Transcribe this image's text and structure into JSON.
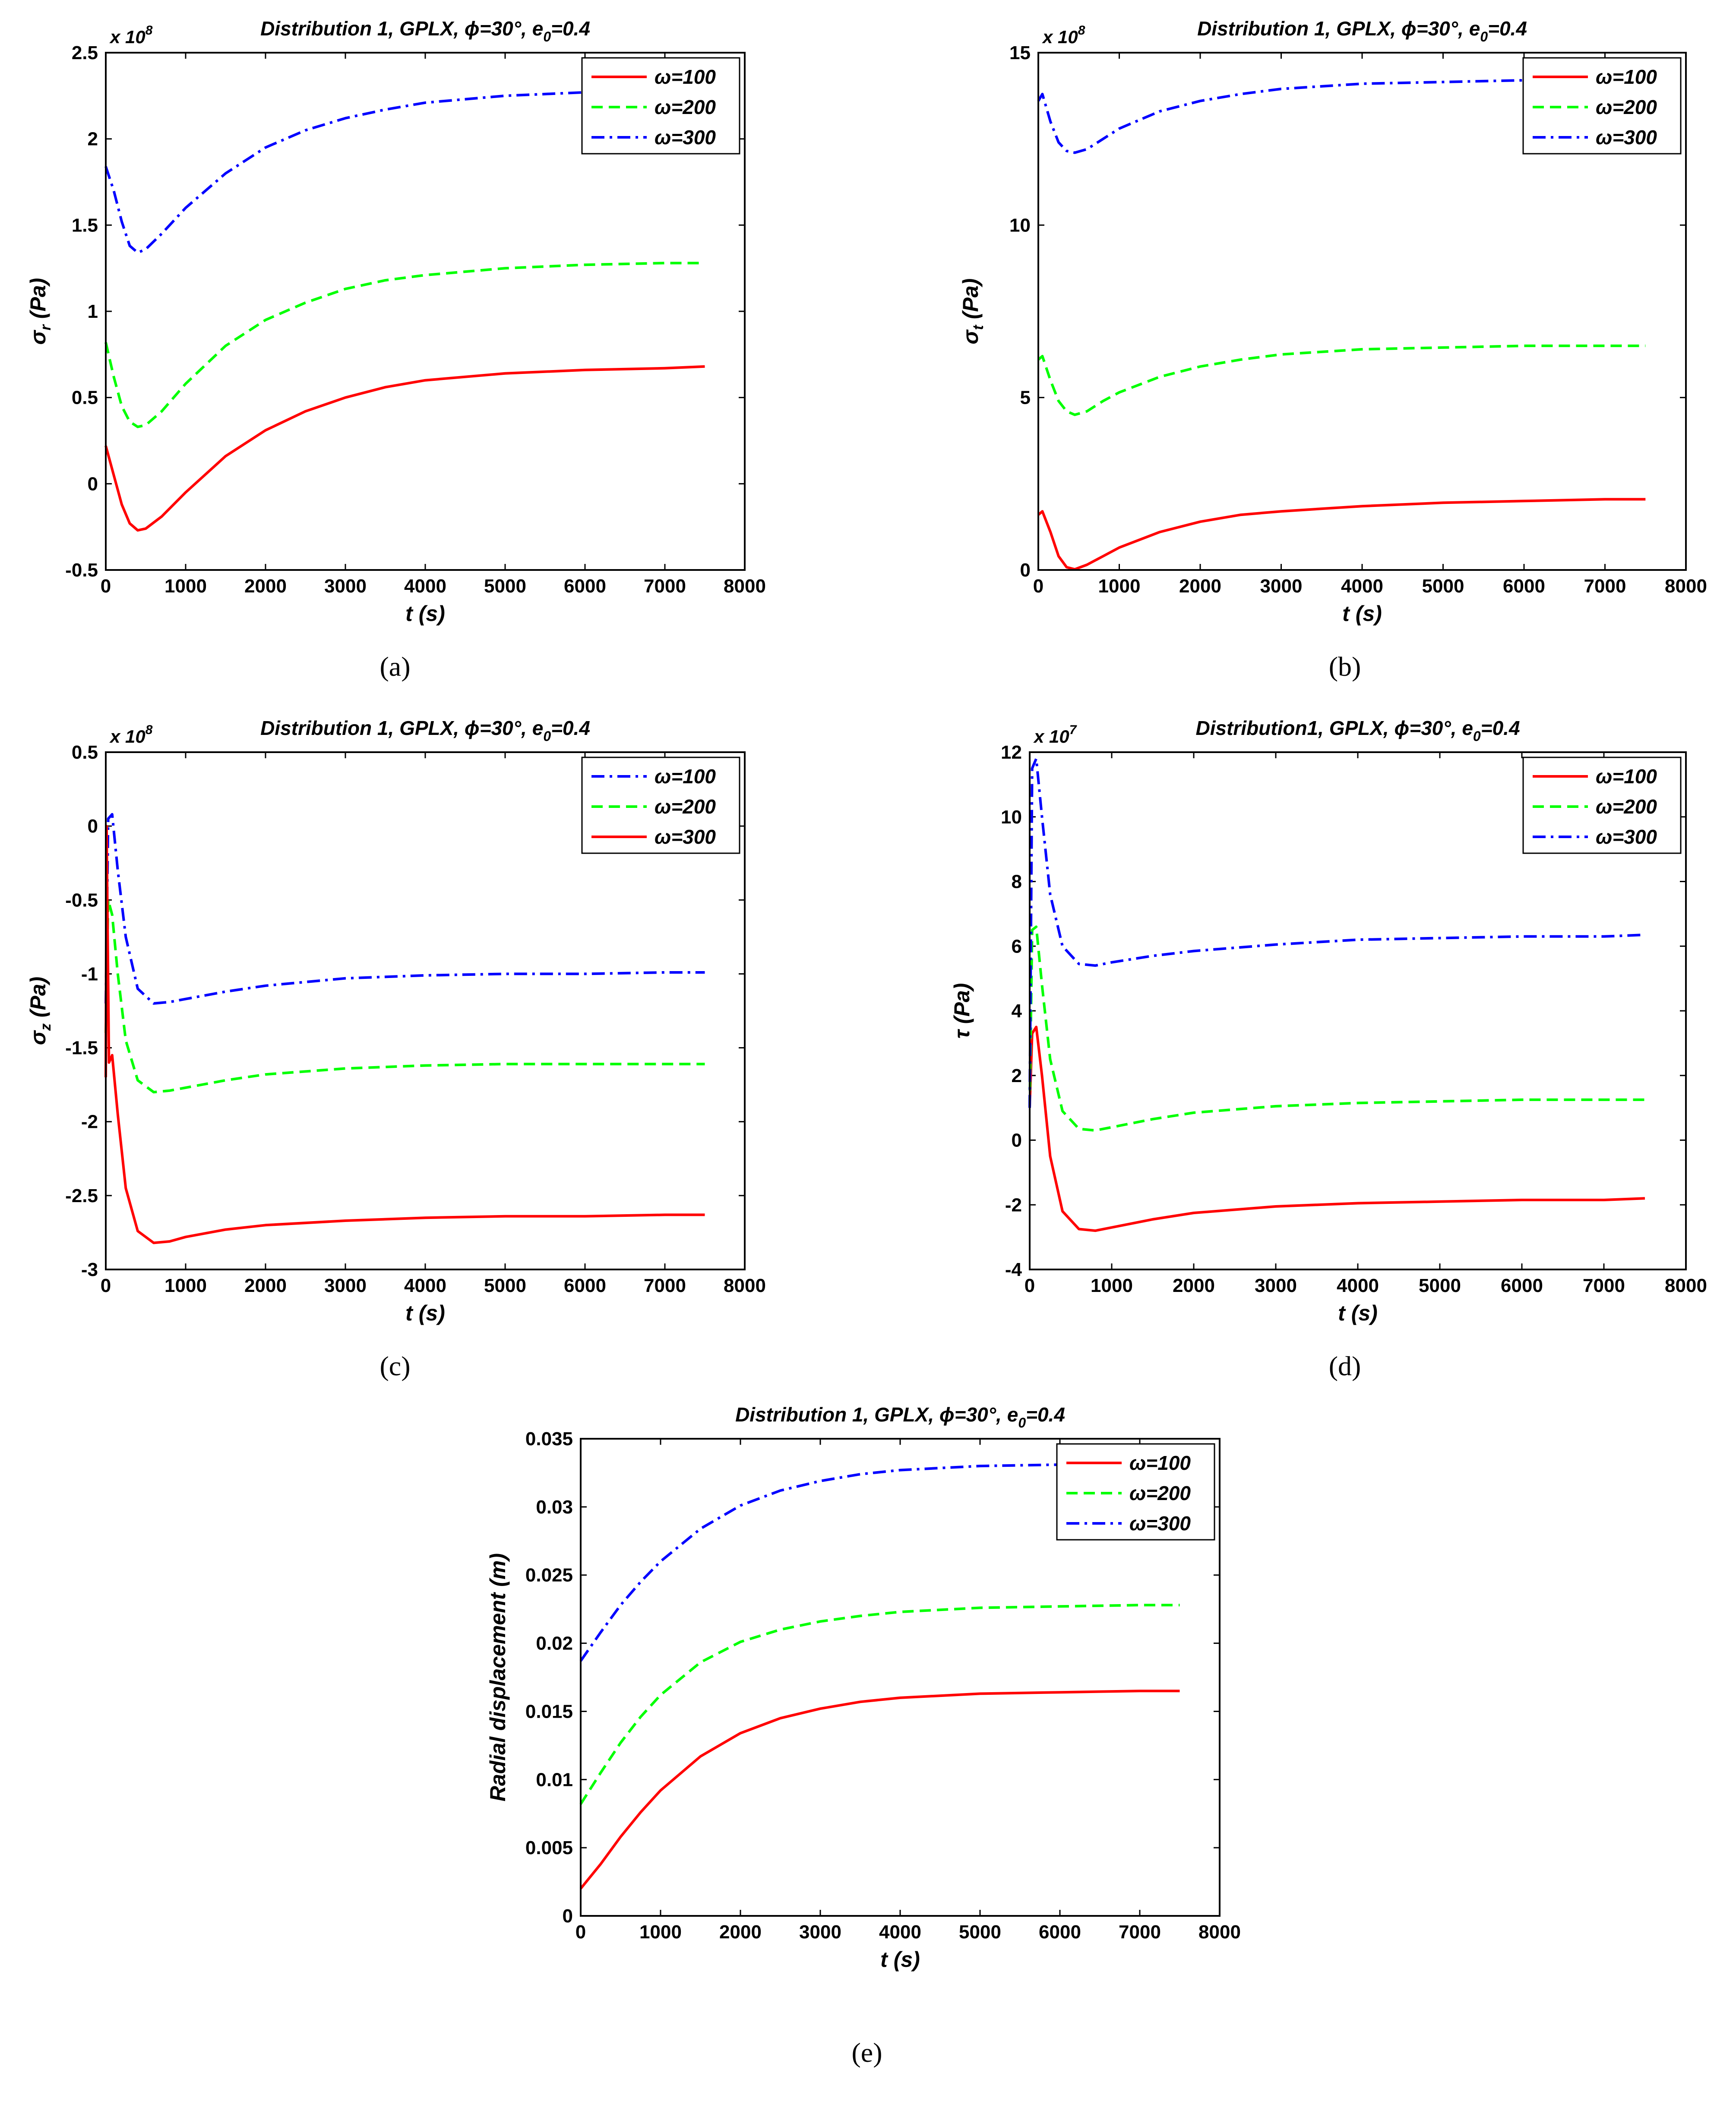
{
  "figure": {
    "captions": [
      "(a)",
      "(b)",
      "(c)",
      "(d)",
      "(e)"
    ]
  },
  "chart_data": [
    {
      "id": "a",
      "type": "line",
      "title": "Distribution 1, GPLX, ϕ=30°, e0=0.4",
      "title_parts": {
        "prefix": "Distribution 1, GPLX, ",
        "phi": "ϕ",
        "mid": "=30°, e",
        "sub": "0",
        "suffix": "=0.4"
      },
      "xlabel": "t (s)",
      "ylabel": "σr (Pa)",
      "ylabel_parts": {
        "main": "σ",
        "sub": "r",
        "rest": " (Pa)"
      },
      "multiplier": {
        "base": "x 10",
        "exp": "8"
      },
      "xlim": [
        0,
        8000
      ],
      "ylim": [
        -0.5,
        2.5
      ],
      "xticks": [
        "0",
        "1000",
        "2000",
        "3000",
        "4000",
        "5000",
        "6000",
        "7000",
        "8000"
      ],
      "yticks": [
        "-0.5",
        "0",
        "0.5",
        "1",
        "1.5",
        "2",
        "2.5"
      ],
      "legend_position": "top-right",
      "series": [
        {
          "name": "ω=100",
          "color": "#ff0000",
          "dash": "solid",
          "x": [
            0,
            100,
            200,
            300,
            400,
            500,
            700,
            1000,
            1500,
            2000,
            2500,
            3000,
            3500,
            4000,
            5000,
            6000,
            7000,
            7500
          ],
          "y": [
            0.22,
            0.05,
            -0.12,
            -0.23,
            -0.27,
            -0.26,
            -0.19,
            -0.05,
            0.16,
            0.31,
            0.42,
            0.5,
            0.56,
            0.6,
            0.64,
            0.66,
            0.67,
            0.68
          ]
        },
        {
          "name": "ω=200",
          "color": "#00ff00",
          "dash": "dashed",
          "x": [
            0,
            100,
            200,
            300,
            400,
            500,
            700,
            1000,
            1500,
            2000,
            2500,
            3000,
            3500,
            4000,
            5000,
            6000,
            7000,
            7500
          ],
          "y": [
            0.82,
            0.62,
            0.45,
            0.36,
            0.33,
            0.34,
            0.42,
            0.58,
            0.8,
            0.95,
            1.05,
            1.13,
            1.18,
            1.21,
            1.25,
            1.27,
            1.28,
            1.28
          ]
        },
        {
          "name": "ω=300",
          "color": "#0000ff",
          "dash": "dashdot",
          "x": [
            0,
            100,
            200,
            300,
            400,
            500,
            700,
            1000,
            1500,
            2000,
            2500,
            3000,
            3500,
            4000,
            5000,
            6000,
            7000,
            7500
          ],
          "y": [
            1.84,
            1.7,
            1.52,
            1.38,
            1.34,
            1.36,
            1.45,
            1.6,
            1.8,
            1.95,
            2.05,
            2.12,
            2.17,
            2.21,
            2.25,
            2.27,
            2.28,
            2.28
          ]
        }
      ]
    },
    {
      "id": "b",
      "type": "line",
      "title": "Distribution 1, GPLX, ϕ=30°, e0=0.4",
      "title_parts": {
        "prefix": "Distribution 1, GPLX, ",
        "phi": "ϕ",
        "mid": "=30°, e",
        "sub": "0",
        "suffix": "=0.4"
      },
      "xlabel": "t (s)",
      "ylabel": "σt (Pa)",
      "ylabel_parts": {
        "main": "σ",
        "sub": "t",
        "rest": " (Pa)"
      },
      "multiplier": {
        "base": "x 10",
        "exp": "8"
      },
      "xlim": [
        0,
        8000
      ],
      "ylim": [
        0,
        15
      ],
      "xticks": [
        "0",
        "1000",
        "2000",
        "3000",
        "4000",
        "5000",
        "6000",
        "7000",
        "8000"
      ],
      "yticks": [
        "0",
        "5",
        "10",
        "15"
      ],
      "legend_position": "top-right",
      "series": [
        {
          "name": "ω=100",
          "color": "#ff0000",
          "dash": "solid",
          "x": [
            0,
            50,
            150,
            250,
            350,
            450,
            600,
            800,
            1000,
            1500,
            2000,
            2500,
            3000,
            4000,
            5000,
            6000,
            7000,
            7500
          ],
          "y": [
            1.6,
            1.7,
            1.1,
            0.4,
            0.08,
            0.02,
            0.15,
            0.4,
            0.65,
            1.1,
            1.4,
            1.6,
            1.7,
            1.85,
            1.95,
            2.0,
            2.05,
            2.05
          ]
        },
        {
          "name": "ω=200",
          "color": "#00ff00",
          "dash": "dashed",
          "x": [
            0,
            50,
            150,
            250,
            350,
            450,
            600,
            800,
            1000,
            1500,
            2000,
            2500,
            3000,
            4000,
            5000,
            6000,
            7000,
            7500
          ],
          "y": [
            6.1,
            6.2,
            5.5,
            4.9,
            4.6,
            4.5,
            4.6,
            4.9,
            5.15,
            5.6,
            5.9,
            6.1,
            6.25,
            6.4,
            6.45,
            6.5,
            6.5,
            6.5
          ]
        },
        {
          "name": "ω=300",
          "color": "#0000ff",
          "dash": "dashdot",
          "x": [
            0,
            50,
            150,
            250,
            350,
            450,
            600,
            800,
            1000,
            1500,
            2000,
            2500,
            3000,
            4000,
            5000,
            6000,
            7000,
            7500
          ],
          "y": [
            13.6,
            13.8,
            13.0,
            12.4,
            12.15,
            12.1,
            12.2,
            12.5,
            12.8,
            13.3,
            13.6,
            13.8,
            13.95,
            14.1,
            14.15,
            14.2,
            14.2,
            14.2
          ]
        }
      ]
    },
    {
      "id": "c",
      "type": "line",
      "title": "Distribution 1, GPLX, ϕ=30°, e0=0.4",
      "title_parts": {
        "prefix": "Distribution 1, GPLX, ",
        "phi": "ϕ",
        "mid": "=30°, e",
        "sub": "0",
        "suffix": "=0.4"
      },
      "xlabel": "t (s)",
      "ylabel": "σz (Pa)",
      "ylabel_parts": {
        "main": "σ",
        "sub": "z",
        "rest": " (Pa)"
      },
      "multiplier": {
        "base": "x 10",
        "exp": "8"
      },
      "xlim": [
        0,
        8000
      ],
      "ylim": [
        -3,
        0.5
      ],
      "xticks": [
        "0",
        "1000",
        "2000",
        "3000",
        "4000",
        "5000",
        "6000",
        "7000",
        "8000"
      ],
      "yticks": [
        "-3",
        "-2.5",
        "-2",
        "-1.5",
        "-1",
        "-0.5",
        "0",
        "0.5"
      ],
      "legend_position": "top-right",
      "series": [
        {
          "name": "ω=100",
          "color": "#0000ff",
          "dash": "dashdot",
          "x": [
            0,
            30,
            80,
            150,
            250,
            400,
            600,
            800,
            1000,
            1500,
            2000,
            3000,
            4000,
            5000,
            6000,
            7000,
            7500
          ],
          "y": [
            -1.2,
            0.05,
            0.08,
            -0.3,
            -0.75,
            -1.1,
            -1.2,
            -1.19,
            -1.17,
            -1.12,
            -1.08,
            -1.03,
            -1.01,
            -1.0,
            -1.0,
            -0.99,
            -0.99
          ]
        },
        {
          "name": "ω=200",
          "color": "#00ff00",
          "dash": "dashed",
          "x": [
            0,
            30,
            80,
            150,
            250,
            400,
            600,
            800,
            1000,
            1500,
            2000,
            3000,
            4000,
            5000,
            6000,
            7000,
            7500
          ],
          "y": [
            -1.4,
            -0.5,
            -0.6,
            -1.0,
            -1.45,
            -1.72,
            -1.8,
            -1.79,
            -1.77,
            -1.72,
            -1.68,
            -1.64,
            -1.62,
            -1.61,
            -1.61,
            -1.61,
            -1.61
          ]
        },
        {
          "name": "ω=300",
          "color": "#ff0000",
          "dash": "solid",
          "x": [
            0,
            10,
            40,
            80,
            150,
            250,
            400,
            600,
            800,
            1000,
            1500,
            2000,
            3000,
            4000,
            5000,
            6000,
            7000,
            7500
          ],
          "y": [
            -1.7,
            0.0,
            -1.6,
            -1.55,
            -1.95,
            -2.45,
            -2.74,
            -2.82,
            -2.81,
            -2.78,
            -2.73,
            -2.7,
            -2.67,
            -2.65,
            -2.64,
            -2.64,
            -2.63,
            -2.63
          ]
        }
      ]
    },
    {
      "id": "d",
      "type": "line",
      "title": "Distribution1, GPLX, ϕ=30°, e0=0.4",
      "title_parts": {
        "prefix": "Distribution1, GPLX, ",
        "phi": "ϕ",
        "mid": "=30°, e",
        "sub": "0",
        "suffix": "=0.4"
      },
      "xlabel": "t (s)",
      "ylabel": "τ (Pa)",
      "ylabel_parts": {
        "main": "τ",
        "sub": "",
        "rest": " (Pa)"
      },
      "multiplier": {
        "base": "x 10",
        "exp": "7"
      },
      "xlim": [
        0,
        8000
      ],
      "ylim": [
        -4,
        12
      ],
      "xticks": [
        "0",
        "1000",
        "2000",
        "3000",
        "4000",
        "5000",
        "6000",
        "7000",
        "8000"
      ],
      "yticks": [
        "-4",
        "-2",
        "0",
        "2",
        "4",
        "6",
        "8",
        "10",
        "12"
      ],
      "legend_position": "top-right",
      "series": [
        {
          "name": "ω=100",
          "color": "#ff0000",
          "dash": "solid",
          "x": [
            0,
            30,
            80,
            150,
            250,
            400,
            600,
            800,
            1000,
            1500,
            2000,
            3000,
            4000,
            5000,
            6000,
            7000,
            7500
          ],
          "y": [
            1.0,
            3.3,
            3.5,
            2.0,
            -0.5,
            -2.2,
            -2.75,
            -2.8,
            -2.7,
            -2.45,
            -2.25,
            -2.05,
            -1.95,
            -1.9,
            -1.85,
            -1.85,
            -1.8
          ]
        },
        {
          "name": "ω=200",
          "color": "#00ff00",
          "dash": "dashed",
          "x": [
            0,
            30,
            80,
            150,
            250,
            400,
            600,
            800,
            1000,
            1500,
            2000,
            3000,
            4000,
            5000,
            6000,
            7000,
            7500
          ],
          "y": [
            1.0,
            6.5,
            6.6,
            4.8,
            2.5,
            0.9,
            0.35,
            0.3,
            0.4,
            0.65,
            0.85,
            1.05,
            1.15,
            1.2,
            1.25,
            1.25,
            1.25
          ]
        },
        {
          "name": "ω=300",
          "color": "#0000ff",
          "dash": "dashdot",
          "x": [
            0,
            30,
            80,
            150,
            250,
            400,
            600,
            800,
            1000,
            1500,
            2000,
            3000,
            4000,
            5000,
            6000,
            7000,
            7500
          ],
          "y": [
            1.0,
            11.5,
            11.8,
            10.0,
            7.6,
            6.0,
            5.45,
            5.4,
            5.5,
            5.7,
            5.85,
            6.05,
            6.2,
            6.25,
            6.3,
            6.3,
            6.35
          ]
        }
      ]
    },
    {
      "id": "e",
      "type": "line",
      "title": "Distribution 1, GPLX, ϕ=30°, e0=0.4",
      "title_parts": {
        "prefix": "Distribution 1, GPLX, ",
        "phi": "ϕ",
        "mid": "=30°, e",
        "sub": "0",
        "suffix": "=0.4"
      },
      "xlabel": "t (s)",
      "ylabel": "Radial displacement (m)",
      "ylabel_parts": {
        "main": "Radial displacement (m)",
        "sub": "",
        "rest": ""
      },
      "multiplier": null,
      "xlim": [
        0,
        8000
      ],
      "ylim": [
        0,
        0.035
      ],
      "xticks": [
        "0",
        "1000",
        "2000",
        "3000",
        "4000",
        "5000",
        "6000",
        "7000",
        "8000"
      ],
      "yticks": [
        "0",
        "0.005",
        "0.01",
        "0.015",
        "0.02",
        "0.025",
        "0.03",
        "0.035"
      ],
      "legend_position": "top-right",
      "series": [
        {
          "name": "ω=100",
          "color": "#ff0000",
          "dash": "solid",
          "x": [
            0,
            250,
            500,
            750,
            1000,
            1500,
            2000,
            2500,
            3000,
            3500,
            4000,
            5000,
            6000,
            7000,
            7500
          ],
          "y": [
            0.002,
            0.0038,
            0.0058,
            0.0076,
            0.0092,
            0.0117,
            0.0134,
            0.0145,
            0.0152,
            0.0157,
            0.016,
            0.0163,
            0.0164,
            0.0165,
            0.0165
          ]
        },
        {
          "name": "ω=200",
          "color": "#00ff00",
          "dash": "dashed",
          "x": [
            0,
            250,
            500,
            750,
            1000,
            1500,
            2000,
            2500,
            3000,
            3500,
            4000,
            5000,
            6000,
            7000,
            7500
          ],
          "y": [
            0.0082,
            0.0105,
            0.0127,
            0.0146,
            0.0162,
            0.0186,
            0.0201,
            0.021,
            0.0216,
            0.022,
            0.0223,
            0.0226,
            0.0227,
            0.0228,
            0.0228
          ]
        },
        {
          "name": "ω=300",
          "color": "#0000ff",
          "dash": "dashdot",
          "x": [
            0,
            250,
            500,
            750,
            1000,
            1500,
            2000,
            2500,
            3000,
            3500,
            4000,
            5000,
            6000,
            7000,
            7500
          ],
          "y": [
            0.0187,
            0.0208,
            0.0228,
            0.0245,
            0.026,
            0.0284,
            0.0301,
            0.0312,
            0.0319,
            0.0324,
            0.0327,
            0.033,
            0.0331,
            0.0332,
            0.0332
          ]
        }
      ]
    }
  ]
}
